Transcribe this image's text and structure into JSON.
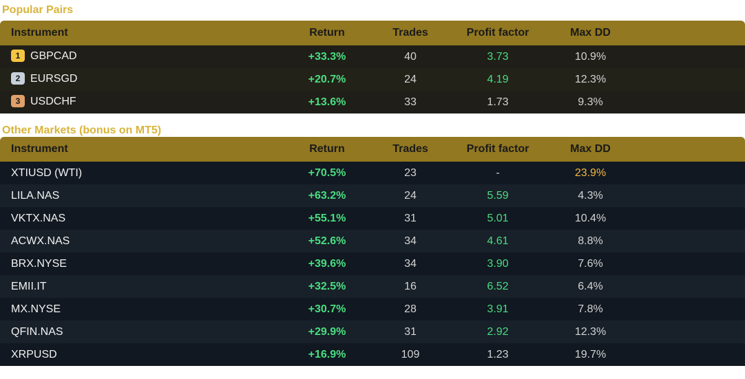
{
  "popular": {
    "title": "Popular Pairs",
    "headers": [
      "Instrument",
      "Return",
      "Trades",
      "Profit factor",
      "Max DD"
    ],
    "rows": [
      {
        "rank": "1",
        "instrument": "GBPCAD",
        "return": "+33.3%",
        "trades": "40",
        "pf": "3.73",
        "dd": "10.9%"
      },
      {
        "rank": "2",
        "instrument": "EURSGD",
        "return": "+20.7%",
        "trades": "24",
        "pf": "4.19",
        "dd": "12.3%"
      },
      {
        "rank": "3",
        "instrument": "USDCHF",
        "return": "+13.6%",
        "trades": "33",
        "pf": "1.73",
        "dd": "9.3%"
      }
    ]
  },
  "other": {
    "title": "Other Markets (bonus on MT5)",
    "headers": [
      "Instrument",
      "Return",
      "Trades",
      "Profit factor",
      "Max DD"
    ],
    "rows": [
      {
        "instrument": "XTIUSD (WTI)",
        "return": "+70.5%",
        "trades": "23",
        "pf": "-",
        "dd": "23.9%"
      },
      {
        "instrument": "LILA.NAS",
        "return": "+63.2%",
        "trades": "24",
        "pf": "5.59",
        "dd": "4.3%"
      },
      {
        "instrument": "VKTX.NAS",
        "return": "+55.1%",
        "trades": "31",
        "pf": "5.01",
        "dd": "10.4%"
      },
      {
        "instrument": "ACWX.NAS",
        "return": "+52.6%",
        "trades": "34",
        "pf": "4.61",
        "dd": "8.8%"
      },
      {
        "instrument": "BRX.NYSE",
        "return": "+39.6%",
        "trades": "34",
        "pf": "3.90",
        "dd": "7.6%"
      },
      {
        "instrument": "EMII.IT",
        "return": "+32.5%",
        "trades": "16",
        "pf": "6.52",
        "dd": "6.4%"
      },
      {
        "instrument": "MX.NYSE",
        "return": "+30.7%",
        "trades": "28",
        "pf": "3.91",
        "dd": "7.8%"
      },
      {
        "instrument": "QFIN.NAS",
        "return": "+29.9%",
        "trades": "31",
        "pf": "2.92",
        "dd": "12.3%"
      },
      {
        "instrument": "XRPUSD",
        "return": "+16.9%",
        "trades": "109",
        "pf": "1.23",
        "dd": "19.7%"
      }
    ]
  },
  "colors": {
    "accent_gold": "#d9b43a",
    "header_bg": "#927820",
    "positive": "#4ade80",
    "warning": "#f5b942"
  }
}
